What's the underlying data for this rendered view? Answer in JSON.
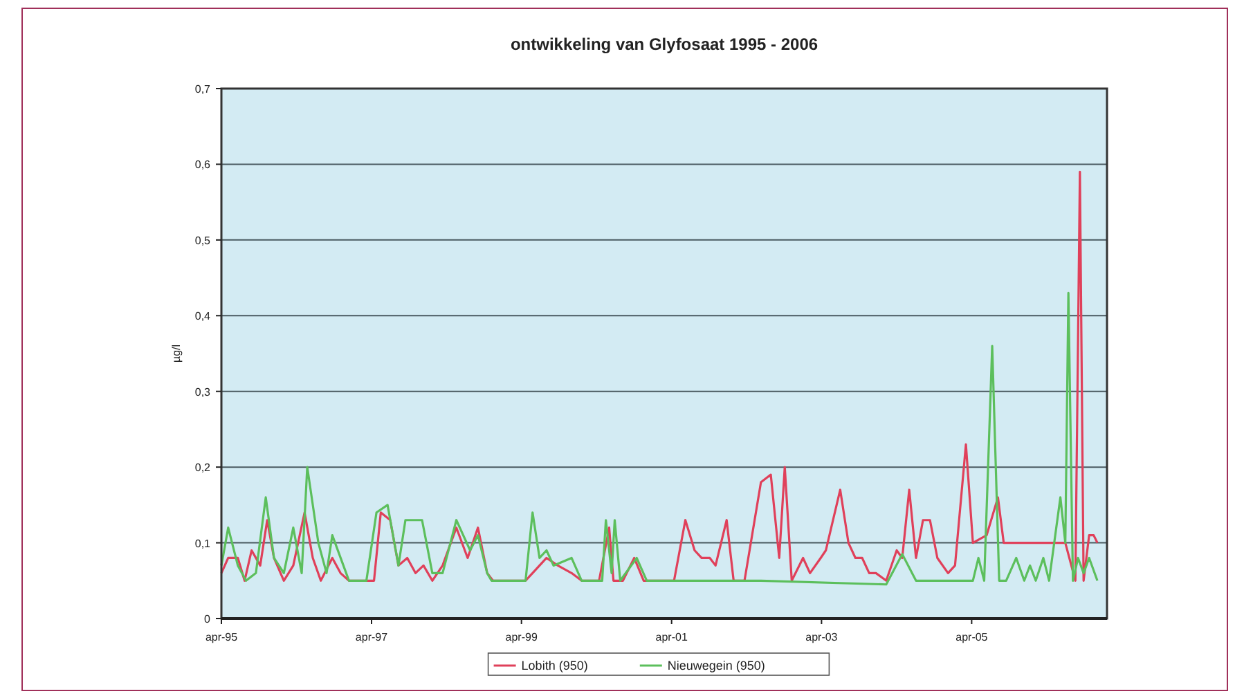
{
  "chart_data": {
    "type": "line",
    "title": "ontwikkeling van Glyfosaat 1995 - 2006",
    "ylabel": "µg/l",
    "xlim": [
      "1995-04-01",
      "2007-01-20"
    ],
    "xticks": [
      {
        "value": "1995-04-01",
        "label": "apr-95"
      },
      {
        "value": "1997-04-01",
        "label": "apr-97"
      },
      {
        "value": "1999-04-01",
        "label": "apr-99"
      },
      {
        "value": "2001-04-01",
        "label": "apr-01"
      },
      {
        "value": "2003-04-01",
        "label": "apr-03"
      },
      {
        "value": "2005-04-01",
        "label": "apr-05"
      }
    ],
    "ylim": [
      0,
      0.7
    ],
    "yticks": [
      0,
      {
        "value": 0.1,
        "label": "0,1"
      },
      {
        "value": 0.2,
        "label": "0,2"
      },
      {
        "value": 0.3,
        "label": "0,3"
      },
      {
        "value": 0.4,
        "label": "0,4"
      },
      {
        "value": 0.5,
        "label": "0,5"
      },
      {
        "value": 0.6,
        "label": "0,6"
      },
      {
        "value": 0.7,
        "label": "0,7"
      }
    ],
    "grid": "y",
    "legend": "bottom",
    "series": [
      {
        "name": "Lobith (950)",
        "color": "#e0405a",
        "x": [
          "1995-04-01",
          "1995-05-04",
          "1995-06-20",
          "1995-07-23",
          "1995-08-26",
          "1995-10-07",
          "1995-11-10",
          "1995-12-13",
          "1996-01-30",
          "1996-03-16",
          "1996-05-10",
          "1996-06-19",
          "1996-07-28",
          "1996-09-22",
          "1996-11-01",
          "1996-12-12",
          "1997-04-13",
          "1997-05-16",
          "1997-07-01",
          "1997-08-10",
          "1997-09-22",
          "1997-11-01",
          "1997-12-10",
          "1998-01-22",
          "1998-03-13",
          "1998-05-19",
          "1998-07-13",
          "1998-09-01",
          "1998-10-16",
          "1998-11-13",
          "1999-04-21",
          "1999-05-25",
          "1999-08-01",
          "1999-09-25",
          "1999-12-01",
          "2000-01-19",
          "2000-04-13",
          "2000-06-01",
          "2000-06-22",
          "2000-08-07",
          "2000-10-01",
          "2000-11-16",
          "2001-04-13",
          "2001-06-07",
          "2001-07-22",
          "2001-08-25",
          "2001-10-04",
          "2001-11-01",
          "2001-12-25",
          "2002-01-28",
          "2002-03-22",
          "2002-06-10",
          "2002-07-28",
          "2002-09-07",
          "2002-10-04",
          "2002-11-07",
          "2003-01-01",
          "2003-02-04",
          "2003-03-28",
          "2003-04-22",
          "2003-07-01",
          "2003-08-10",
          "2003-09-13",
          "2003-10-16",
          "2003-11-19",
          "2003-12-22",
          "2004-02-10",
          "2004-04-01",
          "2004-04-28",
          "2004-06-01",
          "2004-07-04",
          "2004-08-07",
          "2004-09-10",
          "2004-10-16",
          "2004-12-07",
          "2005-01-10",
          "2005-03-04",
          "2005-04-07",
          "2005-06-13",
          "2005-08-07",
          "2005-09-04",
          "2006-07-01",
          "2006-08-19",
          "2006-09-10",
          "2006-09-28",
          "2006-10-25",
          "2006-11-16",
          "2006-12-04"
        ],
        "values": [
          0.06,
          0.08,
          0.08,
          0.05,
          0.09,
          0.07,
          0.13,
          0.08,
          0.05,
          0.07,
          0.14,
          0.08,
          0.05,
          0.08,
          0.06,
          0.05,
          0.05,
          0.14,
          0.13,
          0.07,
          0.08,
          0.06,
          0.07,
          0.05,
          0.07,
          0.12,
          0.08,
          0.12,
          0.06,
          0.05,
          0.05,
          0.06,
          0.08,
          0.07,
          0.06,
          0.05,
          0.05,
          0.12,
          0.05,
          0.05,
          0.08,
          0.05,
          0.05,
          0.13,
          0.09,
          0.08,
          0.08,
          0.07,
          0.13,
          0.05,
          0.05,
          0.18,
          0.19,
          0.08,
          0.2,
          0.05,
          0.08,
          0.06,
          0.08,
          0.09,
          0.17,
          0.1,
          0.08,
          0.08,
          0.06,
          0.06,
          0.05,
          0.09,
          0.08,
          0.17,
          0.08,
          0.13,
          0.13,
          0.08,
          0.06,
          0.07,
          0.23,
          0.1,
          0.11,
          0.16,
          0.1,
          0.1,
          0.05,
          0.59,
          0.05,
          0.11,
          0.11,
          0.1
        ]
      },
      {
        "name": "Nieuwegein (950)",
        "color": "#5cbf5c",
        "x": [
          "1995-04-01",
          "1995-05-04",
          "1995-06-20",
          "1995-07-30",
          "1995-09-16",
          "1995-11-03",
          "1995-12-13",
          "1996-01-30",
          "1996-03-16",
          "1996-04-26",
          "1996-05-23",
          "1996-07-16",
          "1996-08-25",
          "1996-09-22",
          "1996-11-15",
          "1996-12-12",
          "1997-03-07",
          "1997-04-25",
          "1997-06-18",
          "1997-08-10",
          "1997-09-13",
          "1997-12-03",
          "1998-01-22",
          "1998-03-13",
          "1998-05-19",
          "1998-07-25",
          "1998-09-01",
          "1998-10-16",
          "1998-11-06",
          "1999-04-21",
          "1999-05-25",
          "1999-06-28",
          "1999-08-01",
          "1999-09-04",
          "1999-12-01",
          "2000-01-19",
          "2000-04-28",
          "2000-05-16",
          "2000-06-13",
          "2000-06-28",
          "2000-07-25",
          "2000-10-13",
          "2000-12-01",
          "2002-06-10",
          "2004-02-10",
          "2004-04-28",
          "2004-07-04",
          "2005-04-07",
          "2005-05-04",
          "2005-06-01",
          "2005-07-10",
          "2005-08-13",
          "2005-09-16",
          "2005-11-04",
          "2005-12-13",
          "2006-01-10",
          "2006-02-07",
          "2006-03-16",
          "2006-04-13",
          "2006-06-07",
          "2006-07-01",
          "2006-07-16",
          "2006-08-07",
          "2006-09-01",
          "2006-09-28",
          "2006-10-25",
          "2006-12-04"
        ],
        "values": [
          0.07,
          0.12,
          0.07,
          0.05,
          0.06,
          0.16,
          0.08,
          0.06,
          0.12,
          0.06,
          0.2,
          0.1,
          0.06,
          0.11,
          0.07,
          0.05,
          0.05,
          0.14,
          0.15,
          0.07,
          0.13,
          0.13,
          0.06,
          0.06,
          0.13,
          0.09,
          0.11,
          0.06,
          0.05,
          0.05,
          0.14,
          0.08,
          0.09,
          0.07,
          0.08,
          0.05,
          0.05,
          0.13,
          0.06,
          0.13,
          0.05,
          0.08,
          0.05,
          0.05,
          0.045,
          0.085,
          0.05,
          0.05,
          0.08,
          0.05,
          0.36,
          0.05,
          0.05,
          0.08,
          0.05,
          0.07,
          0.05,
          0.08,
          0.05,
          0.16,
          0.1,
          0.43,
          0.05,
          0.08,
          0.06,
          0.08,
          0.05
        ]
      }
    ]
  }
}
